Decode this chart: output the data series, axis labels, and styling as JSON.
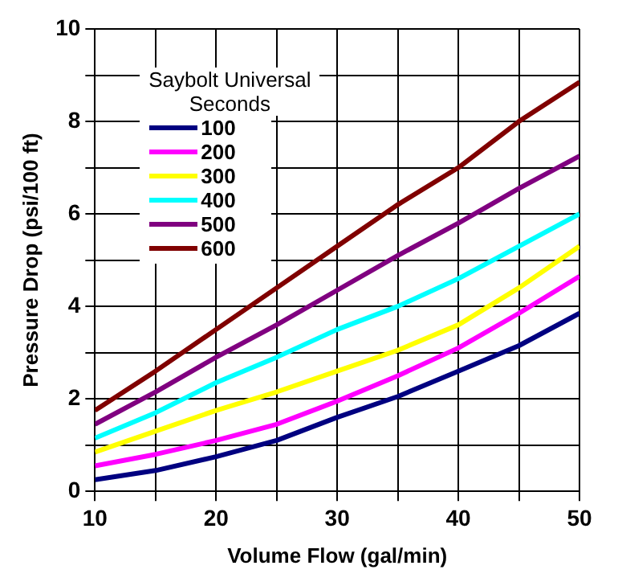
{
  "chart_data": {
    "type": "line",
    "xlabel": "Volume Flow (gal/min)",
    "ylabel": "Pressure Drop (psi/100 ft)",
    "legend_title": "Saybolt Universal Seconds",
    "x": [
      10,
      15,
      20,
      25,
      30,
      35,
      40,
      45,
      50
    ],
    "series": [
      {
        "name": "100",
        "color": "#000080",
        "values": [
          0.25,
          0.45,
          0.75,
          1.1,
          1.6,
          2.05,
          2.6,
          3.15,
          3.85
        ]
      },
      {
        "name": "200",
        "color": "#ff00ff",
        "values": [
          0.55,
          0.8,
          1.1,
          1.45,
          1.95,
          2.5,
          3.1,
          3.85,
          4.65
        ]
      },
      {
        "name": "300",
        "color": "#ffff00",
        "values": [
          0.85,
          1.3,
          1.75,
          2.15,
          2.6,
          3.05,
          3.6,
          4.4,
          5.3
        ]
      },
      {
        "name": "400",
        "color": "#00ffff",
        "values": [
          1.15,
          1.7,
          2.35,
          2.9,
          3.5,
          4.0,
          4.6,
          5.3,
          6.0
        ]
      },
      {
        "name": "500",
        "color": "#800080",
        "values": [
          1.45,
          2.15,
          2.9,
          3.6,
          4.35,
          5.1,
          5.8,
          6.55,
          7.25
        ]
      },
      {
        "name": "600",
        "color": "#800000",
        "values": [
          1.75,
          2.6,
          3.5,
          4.4,
          5.3,
          6.2,
          7.0,
          8.0,
          8.85
        ]
      }
    ],
    "xlim": [
      10,
      50
    ],
    "xticks": [
      10,
      {
        "value": 15,
        "label": null
      },
      20,
      {
        "value": 25,
        "label": null
      },
      30,
      {
        "value": 35,
        "label": null
      },
      40,
      {
        "value": 45,
        "label": null
      },
      50
    ],
    "ylim": [
      0,
      10
    ],
    "yticks": [
      0,
      {
        "value": 1,
        "label": null
      },
      2,
      {
        "value": 3,
        "label": null
      },
      4,
      {
        "value": 5,
        "label": null
      },
      6,
      {
        "value": 7,
        "label": null
      },
      8,
      {
        "value": 9,
        "label": null
      },
      10
    ],
    "grid": true,
    "legend": "top left",
    "marker": "none",
    "line_style": "solid"
  }
}
